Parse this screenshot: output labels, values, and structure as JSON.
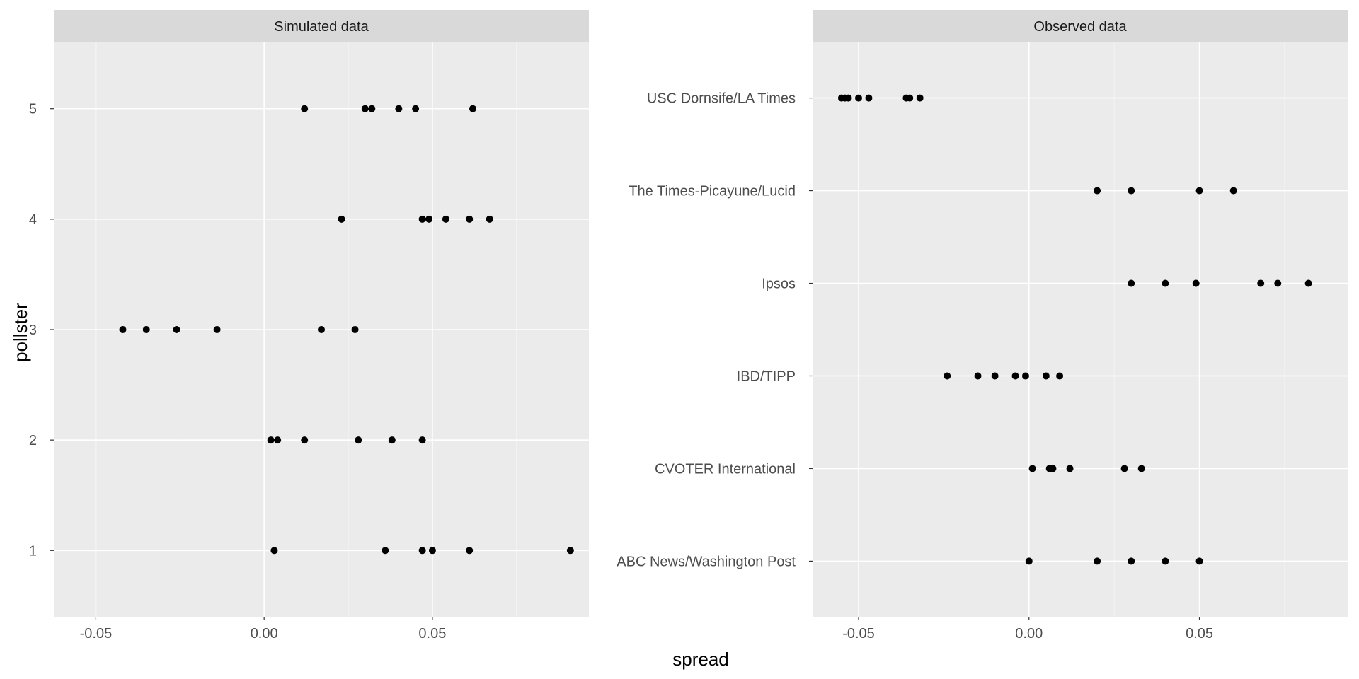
{
  "chart_data": [
    {
      "type": "scatter",
      "title": "Simulated data",
      "xlabel": "spread",
      "ylabel": "pollster",
      "xlim": [
        -0.0625,
        0.0965
      ],
      "ylim": [
        0.4,
        5.6
      ],
      "grid": true,
      "x_ticks": [
        "-0.05",
        "0.00",
        "0.05"
      ],
      "x_tick_values": [
        -0.05,
        0.0,
        0.05
      ],
      "categories": [
        "1",
        "2",
        "3",
        "4",
        "5"
      ],
      "points": [
        {
          "y": "1",
          "x": [
            0.003,
            0.036,
            0.047,
            0.05,
            0.061,
            0.091
          ]
        },
        {
          "y": "2",
          "x": [
            0.002,
            0.004,
            0.012,
            0.028,
            0.038,
            0.047
          ]
        },
        {
          "y": "3",
          "x": [
            -0.042,
            -0.035,
            -0.026,
            -0.014,
            0.017,
            0.027
          ]
        },
        {
          "y": "4",
          "x": [
            0.023,
            0.047,
            0.049,
            0.054,
            0.061,
            0.067
          ]
        },
        {
          "y": "5",
          "x": [
            0.012,
            0.03,
            0.032,
            0.04,
            0.045,
            0.062
          ]
        }
      ]
    },
    {
      "type": "scatter",
      "title": "Observed data",
      "xlabel": "spread",
      "ylabel": "",
      "xlim": [
        -0.0635,
        0.0935
      ],
      "ylim": [
        0.4,
        6.6
      ],
      "grid": true,
      "x_ticks": [
        "-0.05",
        "0.00",
        "0.05"
      ],
      "x_tick_values": [
        -0.05,
        0.0,
        0.05
      ],
      "categories": [
        "ABC News/Washington Post",
        "CVOTER International",
        "IBD/TIPP",
        "Ipsos",
        "The Times-Picayune/Lucid",
        "USC Dornsife/LA Times"
      ],
      "points": [
        {
          "y": "ABC News/Washington Post",
          "x": [
            0.0,
            0.02,
            0.03,
            0.04,
            0.05
          ]
        },
        {
          "y": "CVOTER International",
          "x": [
            0.001,
            0.006,
            0.007,
            0.012,
            0.028,
            0.033
          ]
        },
        {
          "y": "IBD/TIPP",
          "x": [
            -0.024,
            -0.015,
            -0.01,
            -0.004,
            -0.001,
            0.005,
            0.009
          ]
        },
        {
          "y": "Ipsos",
          "x": [
            0.03,
            0.04,
            0.049,
            0.068,
            0.073,
            0.082
          ]
        },
        {
          "y": "The Times-Picayune/Lucid",
          "x": [
            0.02,
            0.03,
            0.05,
            0.06
          ]
        },
        {
          "y": "USC Dornsife/LA Times",
          "x": [
            -0.055,
            -0.054,
            -0.053,
            -0.05,
            -0.047,
            -0.036,
            -0.035,
            -0.032
          ]
        }
      ]
    }
  ],
  "colors": {
    "panel_bg": "#ebebeb",
    "strip_bg": "#d9d9d9",
    "grid_major": "#ffffff",
    "point": "#000000",
    "tick_text": "#4d4d4d",
    "axis_title": "#000000"
  }
}
